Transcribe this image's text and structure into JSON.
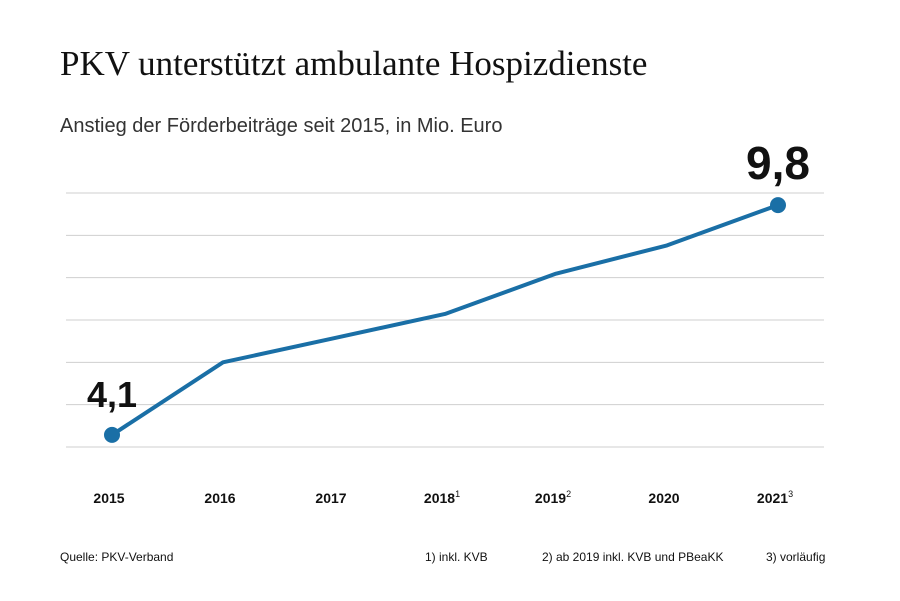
{
  "header": {
    "title": "PKV unterstützt ambulante Hospizdienste",
    "subtitle": "Anstieg der Förderbeiträge seit 2015, in Mio. Euro"
  },
  "chart_data": {
    "type": "line",
    "title": "PKV unterstützt ambulante Hospizdienste",
    "subtitle": "Anstieg der Förderbeiträge seit 2015, in Mio. Euro",
    "x": [
      "2015",
      "2016",
      "2017",
      "2018",
      "2019",
      "2020",
      "2021"
    ],
    "x_superscripts": [
      "",
      "",
      "",
      "1",
      "2",
      "",
      "3"
    ],
    "series": [
      {
        "values": [
          4.1,
          5.9,
          6.5,
          7.1,
          8.1,
          8.8,
          9.8
        ]
      }
    ],
    "data_labels": [
      {
        "index": 0,
        "text": "4,1"
      },
      {
        "index": 6,
        "text": "9,8"
      }
    ],
    "ylim": [
      3.8,
      10.1
    ],
    "grid": true,
    "colors": {
      "line": "#1a6fa6",
      "grid": "#cfcfcf"
    }
  },
  "footer": {
    "source": "Quelle: PKV-Verband",
    "notes": [
      "1) inkl. KVB",
      "2) ab 2019 inkl. KVB und PBeaKK",
      "3) vorläufig"
    ]
  }
}
